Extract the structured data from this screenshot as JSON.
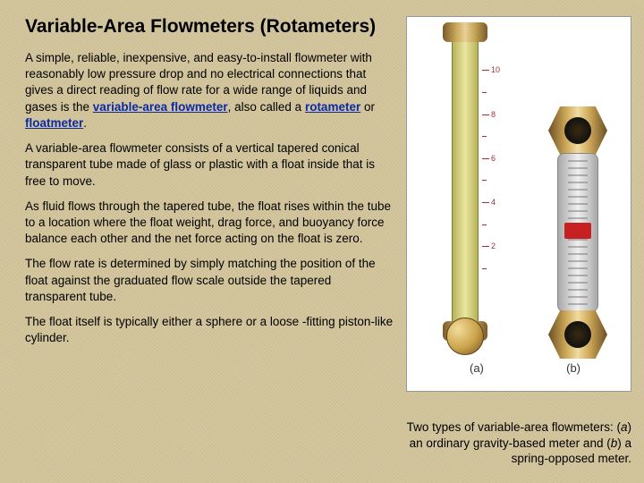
{
  "title": "Variable-Area Flowmeters (Rotameters)",
  "paragraphs": {
    "p1a": "A simple, reliable, inexpensive, and easy-to-install flowmeter with reasonably low pressure drop and no electrical connections that gives a direct reading of flow rate for a wide range of liquids and gases is the ",
    "kw1": "variable-area flowmeter",
    "p1b": ", also called a ",
    "kw2": "rotameter",
    "p1c": " or ",
    "kw3": "floatmeter",
    "p1d": ".",
    "p2": "A variable-area flowmeter consists of a vertical tapered conical transparent tube made of glass or plastic with a float inside that is free to move.",
    "p3": "As fluid flows through the tapered tube, the float rises within the tube to a location where the float weight, drag force, and buoyancy force balance each other and the net force acting on the float is zero.",
    "p4": "The flow rate is determined by simply matching the position of the float against the graduated flow scale outside the tapered transparent tube.",
    "p5": "The float itself is typically either a sphere or a loose -fitting piston-like cylinder."
  },
  "caption": {
    "c1": "Two types of variable-area flowmeters: (",
    "ia": "a",
    "c2": ") an ordinary gravity-based meter and (",
    "ib": "b",
    "c3": ") a spring-opposed meter."
  },
  "figure": {
    "label_a": "(a)",
    "label_b": "(b)",
    "scale_marks": [
      {
        "val": "10",
        "pct": 8
      },
      {
        "val": "8",
        "pct": 25
      },
      {
        "val": "6",
        "pct": 42
      },
      {
        "val": "4",
        "pct": 59
      },
      {
        "val": "2",
        "pct": 76
      }
    ],
    "colors": {
      "background": "#d4c7a0",
      "keyword": "#0b2aa3",
      "brass_dark": "#7a5a28",
      "brass_light": "#e8d098",
      "tube_a": "#e9e6a0",
      "scale_red": "#a03030",
      "red_label": "#c62020"
    }
  }
}
